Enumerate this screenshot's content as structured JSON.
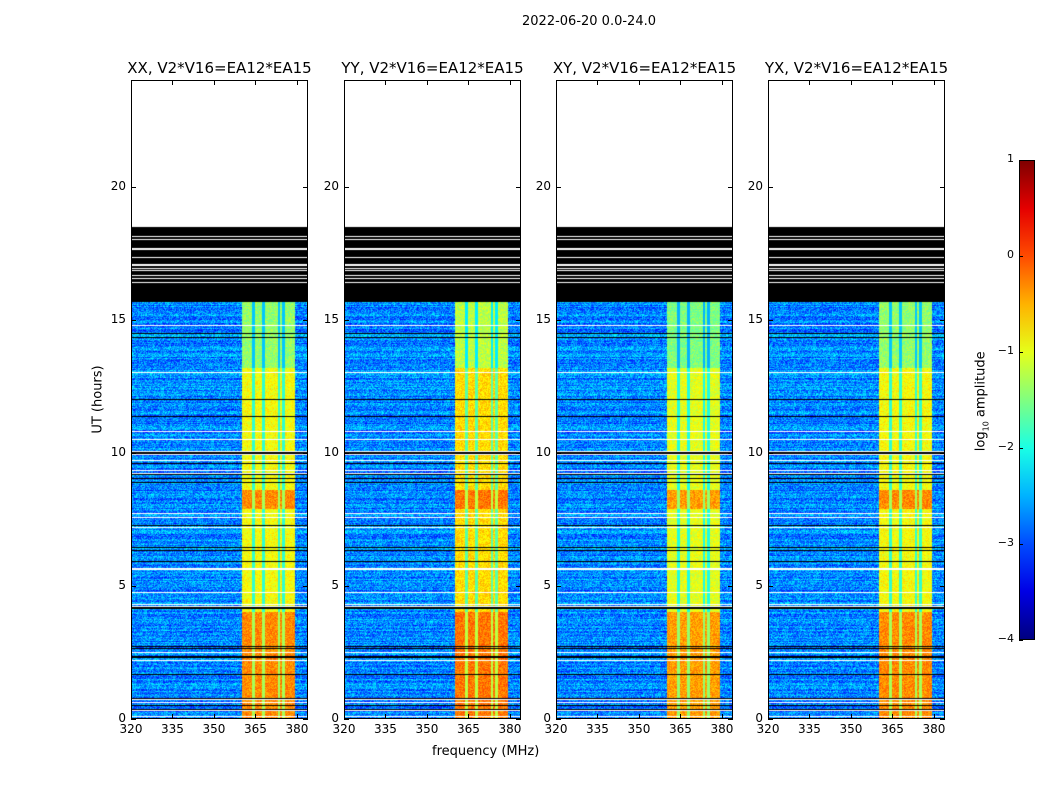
{
  "chart_data": {
    "type": "heatmap",
    "title": "2022-06-20 0.0-24.0",
    "xlabel": "frequency (MHz)",
    "ylabel": "UT (hours)",
    "xlim": [
      320,
      384
    ],
    "ylim": [
      0,
      24
    ],
    "xticks": [
      "320",
      "335",
      "350",
      "365",
      "380"
    ],
    "yticks": [
      "0",
      "5",
      "10",
      "15",
      "20"
    ],
    "panels": [
      {
        "title": "XX, V2*V16=EA12*EA15",
        "band_level": -0.9,
        "early_band_level": -0.3
      },
      {
        "title": "YY, V2*V16=EA12*EA15",
        "band_level": -0.7,
        "early_band_level": -0.2
      },
      {
        "title": "XY, V2*V16=EA12*EA15",
        "band_level": -1.0,
        "early_band_level": -0.4
      },
      {
        "title": "YX, V2*V16=EA12*EA15",
        "band_level": -0.9,
        "early_band_level": -0.3
      }
    ],
    "background_level": -2.7,
    "rfi_band_mhz": [
      360.2,
      379.6
    ],
    "band_gaps_mhz": [
      364.2,
      368.0,
      373.6,
      375.2
    ],
    "no_data_above_hours": 18.5,
    "flagged_black_hours": [
      15.7,
      18.5
    ],
    "colorbar": {
      "label": "log10 amplitude",
      "label_main": "log",
      "label_sub": "10",
      "label_tail": " amplitude",
      "range": [
        -4,
        1
      ],
      "ticks": [
        "1",
        "0",
        "−1",
        "−2",
        "−3",
        "−4"
      ],
      "colormap": "jet"
    }
  }
}
